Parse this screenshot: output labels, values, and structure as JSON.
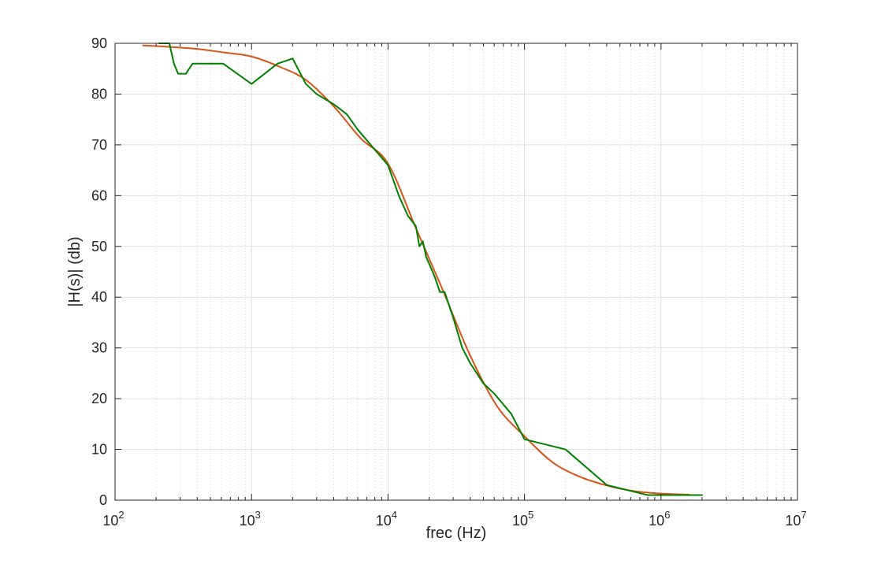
{
  "chart_data": {
    "type": "line",
    "title": "",
    "xlabel": "frec (Hz)",
    "ylabel": "|H(s)| (db)",
    "xscale": "log",
    "xlim": [
      100,
      10000000
    ],
    "ylim": [
      0,
      90
    ],
    "grid": true,
    "minor_grid_x": true,
    "legend": "none",
    "x_ticks": [
      {
        "value": 100,
        "base": "10",
        "exp": "2"
      },
      {
        "value": 1000,
        "base": "10",
        "exp": "3"
      },
      {
        "value": 10000,
        "base": "10",
        "exp": "4"
      },
      {
        "value": 100000,
        "base": "10",
        "exp": "5"
      },
      {
        "value": 1000000,
        "base": "10",
        "exp": "6"
      },
      {
        "value": 10000000,
        "base": "10",
        "exp": "7"
      }
    ],
    "y_ticks": [
      0,
      10,
      20,
      30,
      40,
      50,
      60,
      70,
      80,
      90
    ],
    "series": [
      {
        "color": "#D95319",
        "style": "smooth",
        "x": [
          160,
          250,
          400,
          630,
          1000,
          1600,
          2500,
          4000,
          6300,
          10000,
          16000,
          25000,
          40000,
          63000,
          100000,
          160000,
          250000,
          400000,
          630000,
          1000000,
          1600000
        ],
        "y": [
          89.6,
          89.3,
          88.9,
          88.2,
          87.4,
          85.4,
          82.8,
          77.6,
          71.3,
          66.3,
          53.6,
          41.6,
          28.5,
          18.5,
          12.6,
          7.5,
          4.7,
          2.9,
          1.8,
          1.3,
          1.1
        ]
      },
      {
        "color": "#008000",
        "style": "polyline",
        "x": [
          210,
          250,
          270,
          290,
          330,
          370,
          620,
          1000,
          1550,
          2000,
          2500,
          3000,
          4000,
          5000,
          6000,
          10000,
          12000,
          14000,
          16000,
          17000,
          18000,
          19000,
          22000,
          24000,
          26000,
          30000,
          35000,
          40000,
          50000,
          60000,
          80000,
          100000,
          200000,
          400000,
          800000,
          1500000,
          2000000
        ],
        "y": [
          90,
          90,
          86,
          84,
          84,
          86,
          86,
          82,
          86,
          87,
          82,
          80,
          78,
          76,
          73,
          66,
          60,
          56,
          54,
          50,
          51,
          48,
          44,
          41,
          41,
          36,
          30,
          27,
          23,
          21,
          17,
          12,
          10,
          3,
          1,
          1,
          1
        ]
      }
    ]
  }
}
